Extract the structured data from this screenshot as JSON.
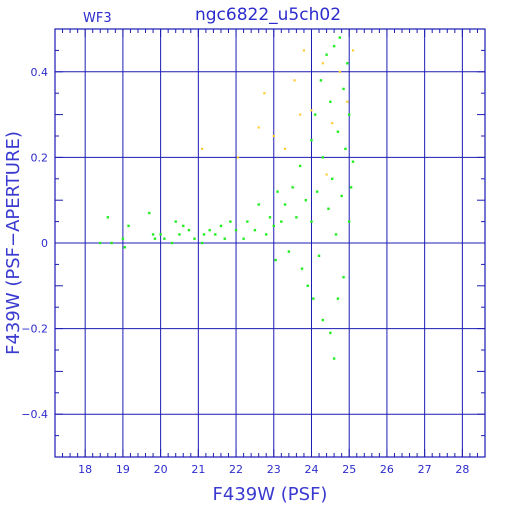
{
  "chart_data": {
    "type": "scatter",
    "title": "ngc6822_u5ch02",
    "panel_label": "WF3",
    "xlabel": "F439W (PSF)",
    "ylabel": "F439W (PSF−APERTURE)",
    "xlim": [
      17.2,
      28.6
    ],
    "ylim": [
      -0.5,
      0.5
    ],
    "x_ticks": [
      18,
      19,
      20,
      21,
      22,
      23,
      24,
      25,
      26,
      27,
      28
    ],
    "x_tick_labels": [
      "18",
      "19",
      "20",
      "21",
      "22",
      "23",
      "24",
      "25",
      "26",
      "27",
      "28"
    ],
    "y_ticks": [
      -0.4,
      -0.2,
      0,
      0.2,
      0.4
    ],
    "y_tick_labels": [
      "−0.4",
      "−0.2",
      "0",
      "0.2",
      "0.4"
    ],
    "grid": true,
    "colors": {
      "axes": "#1c1cb4",
      "text": "#2c2ccc",
      "main_points": "#22ee22",
      "secondary_points": "#ffcc33"
    },
    "series": [
      {
        "points": [
          [
            18.4,
            0.0
          ],
          [
            18.6,
            0.06
          ],
          [
            18.7,
            0.0
          ],
          [
            19.0,
            0.01
          ],
          [
            19.05,
            -0.01
          ],
          [
            19.15,
            0.04
          ],
          [
            19.7,
            0.07
          ],
          [
            19.8,
            0.02
          ],
          [
            19.85,
            0.01
          ],
          [
            20.0,
            0.02
          ],
          [
            20.1,
            0.01
          ],
          [
            20.3,
            0.0
          ],
          [
            20.4,
            0.05
          ],
          [
            20.5,
            0.02
          ],
          [
            20.6,
            0.04
          ],
          [
            20.75,
            0.03
          ],
          [
            20.9,
            0.01
          ],
          [
            21.1,
            0.0
          ],
          [
            21.15,
            0.02
          ],
          [
            21.3,
            0.03
          ],
          [
            21.45,
            0.02
          ],
          [
            21.6,
            0.04
          ],
          [
            21.7,
            0.01
          ],
          [
            21.85,
            0.05
          ],
          [
            22.0,
            0.03
          ],
          [
            22.2,
            0.01
          ],
          [
            22.3,
            0.05
          ],
          [
            22.5,
            0.03
          ],
          [
            22.6,
            0.09
          ],
          [
            22.8,
            0.02
          ],
          [
            22.9,
            0.06
          ],
          [
            23.0,
            0.04
          ],
          [
            23.05,
            -0.04
          ],
          [
            23.1,
            0.12
          ],
          [
            23.2,
            0.05
          ],
          [
            23.3,
            0.09
          ],
          [
            23.4,
            -0.02
          ],
          [
            23.5,
            0.13
          ],
          [
            23.6,
            0.06
          ],
          [
            23.7,
            0.18
          ],
          [
            23.75,
            -0.06
          ],
          [
            23.85,
            0.1
          ],
          [
            23.9,
            -0.1
          ],
          [
            24.0,
            0.24
          ],
          [
            24.0,
            0.05
          ],
          [
            24.05,
            -0.13
          ],
          [
            24.1,
            0.3
          ],
          [
            24.15,
            0.12
          ],
          [
            24.2,
            -0.03
          ],
          [
            24.25,
            0.38
          ],
          [
            24.3,
            0.2
          ],
          [
            24.3,
            -0.18
          ],
          [
            24.4,
            0.44
          ],
          [
            24.45,
            0.08
          ],
          [
            24.5,
            -0.21
          ],
          [
            24.5,
            0.33
          ],
          [
            24.55,
            0.15
          ],
          [
            24.6,
            -0.27
          ],
          [
            24.6,
            0.46
          ],
          [
            24.65,
            0.02
          ],
          [
            24.7,
            0.26
          ],
          [
            24.7,
            -0.13
          ],
          [
            24.75,
            0.48
          ],
          [
            24.8,
            0.11
          ],
          [
            24.85,
            0.36
          ],
          [
            24.85,
            -0.08
          ],
          [
            24.9,
            0.22
          ],
          [
            24.95,
            0.42
          ],
          [
            25.0,
            0.05
          ],
          [
            25.0,
            0.3
          ],
          [
            25.05,
            0.13
          ],
          [
            25.1,
            0.19
          ]
        ]
      },
      {
        "points": [
          [
            21.1,
            0.22
          ],
          [
            22.05,
            0.2
          ],
          [
            22.6,
            0.27
          ],
          [
            22.75,
            0.35
          ],
          [
            23.0,
            0.25
          ],
          [
            23.3,
            0.22
          ],
          [
            23.55,
            0.38
          ],
          [
            23.8,
            0.45
          ],
          [
            24.0,
            0.31
          ],
          [
            24.3,
            0.42
          ],
          [
            24.55,
            0.28
          ],
          [
            24.75,
            0.4
          ],
          [
            24.95,
            0.33
          ],
          [
            25.1,
            0.45
          ],
          [
            24.4,
            0.16
          ],
          [
            23.7,
            0.3
          ]
        ]
      }
    ]
  }
}
